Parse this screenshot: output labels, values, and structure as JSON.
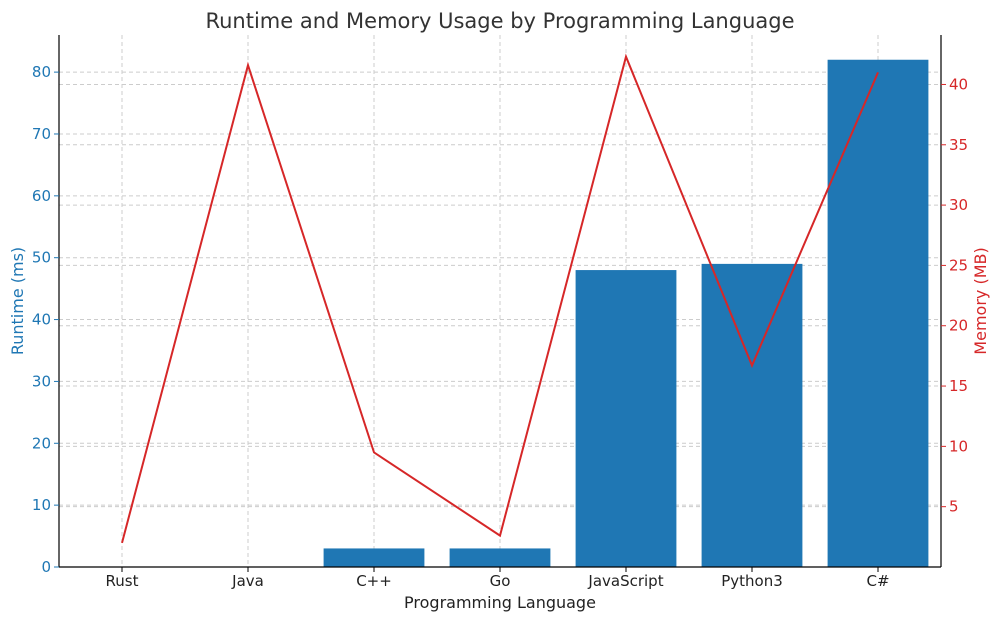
{
  "chart_data": {
    "type": "bar+line",
    "title": "Runtime and Memory Usage by Programming Language",
    "xlabel": "Programming Language",
    "categories": [
      "Rust",
      "Java",
      "C++",
      "Go",
      "JavaScript",
      "Python3",
      "C#"
    ],
    "series": [
      {
        "name": "Runtime (ms)",
        "type": "bar",
        "axis": "left",
        "color": "#1f77b4",
        "values": [
          0,
          0,
          3,
          3,
          48,
          49,
          82
        ]
      },
      {
        "name": "Memory (MB)",
        "type": "line",
        "axis": "right",
        "color": "#d62728",
        "values": [
          2.0,
          41.6,
          9.5,
          2.6,
          42.3,
          16.7,
          41.0
        ]
      }
    ],
    "y_left": {
      "label": "Runtime (ms)",
      "range": [
        0,
        86
      ],
      "ticks": [
        0,
        10,
        20,
        30,
        40,
        50,
        60,
        70,
        80
      ],
      "color": "#1f77b4"
    },
    "y_right": {
      "label": "Memory (MB)",
      "range": [
        0.0,
        44.1
      ],
      "ticks": [
        5,
        10,
        15,
        20,
        25,
        30,
        35,
        40
      ],
      "color": "#d62728"
    },
    "grid": true
  }
}
